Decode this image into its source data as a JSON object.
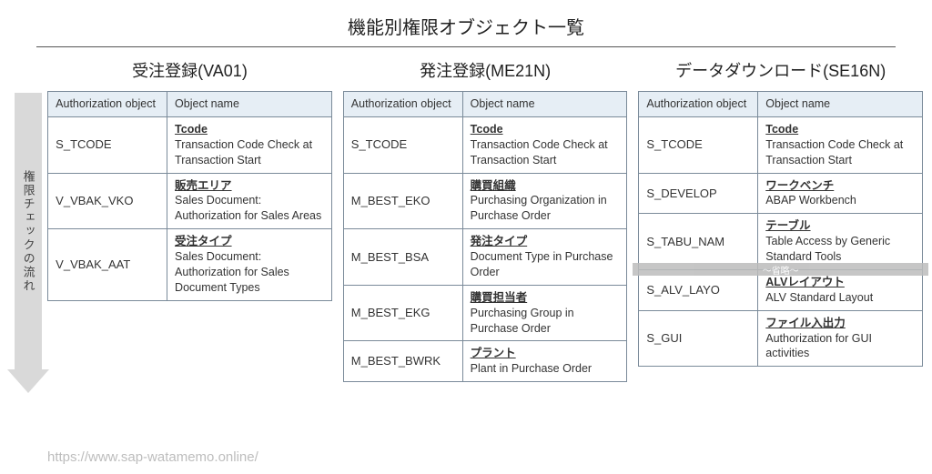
{
  "page_title": "機能別権限オブジェクト一覧",
  "arrow_label": "権限チェックの流れ",
  "columns": {
    "auth_object": "Authorization object",
    "object_name": "Object name"
  },
  "tables": [
    {
      "title": "受注登録(VA01)",
      "rows": [
        {
          "code": "S_TCODE",
          "name_jp": "Tcode",
          "name_en": "Transaction Code Check at Transaction Start"
        },
        {
          "code": "V_VBAK_VKO",
          "name_jp": "販売エリア",
          "name_en": "Sales Document: Authorization for Sales Areas"
        },
        {
          "code": "V_VBAK_AAT",
          "name_jp": "受注タイプ",
          "name_en": "Sales Document: Authorization for Sales Document Types"
        }
      ]
    },
    {
      "title": "発注登録(ME21N)",
      "rows": [
        {
          "code": "S_TCODE",
          "name_jp": "Tcode",
          "name_en": "Transaction Code Check at Transaction Start"
        },
        {
          "code": "M_BEST_EKO",
          "name_jp": "購買組織",
          "name_en": "Purchasing Organization in Purchase Order"
        },
        {
          "code": "M_BEST_BSA",
          "name_jp": "発注タイプ",
          "name_en": "Document Type in Purchase Order"
        },
        {
          "code": "M_BEST_EKG",
          "name_jp": "購買担当者",
          "name_en": "Purchasing Group in Purchase Order"
        },
        {
          "code": "M_BEST_BWRK",
          "name_jp": "プラント",
          "name_en": "Plant in Purchase Order"
        }
      ]
    },
    {
      "title": "データダウンロード(SE16N)",
      "shoryaku_after": 3,
      "shoryaku_text": "～省略～",
      "rows": [
        {
          "code": "S_TCODE",
          "name_jp": "Tcode",
          "name_en": "Transaction Code Check at Transaction Start"
        },
        {
          "code": "S_DEVELOP",
          "name_jp": "ワークベンチ",
          "name_en": "ABAP Workbench"
        },
        {
          "code": "S_TABU_NAM",
          "name_jp": "テーブル",
          "name_en": "Table Access by Generic Standard Tools"
        },
        {
          "code": "S_ALV_LAYO",
          "name_jp": "ALVレイアウト",
          "name_en": "ALV Standard Layout"
        },
        {
          "code": "S_GUI",
          "name_jp": "ファイル入出力",
          "name_en": "Authorization for GUI activities"
        }
      ]
    }
  ],
  "footer_url": "https://www.sap-watamemo.online/",
  "colors": {
    "header_bg": "#e6eef5",
    "border": "#7a8a99",
    "arrow": "#d9d9d9",
    "shoryaku_bg": "#bcbcbc"
  }
}
